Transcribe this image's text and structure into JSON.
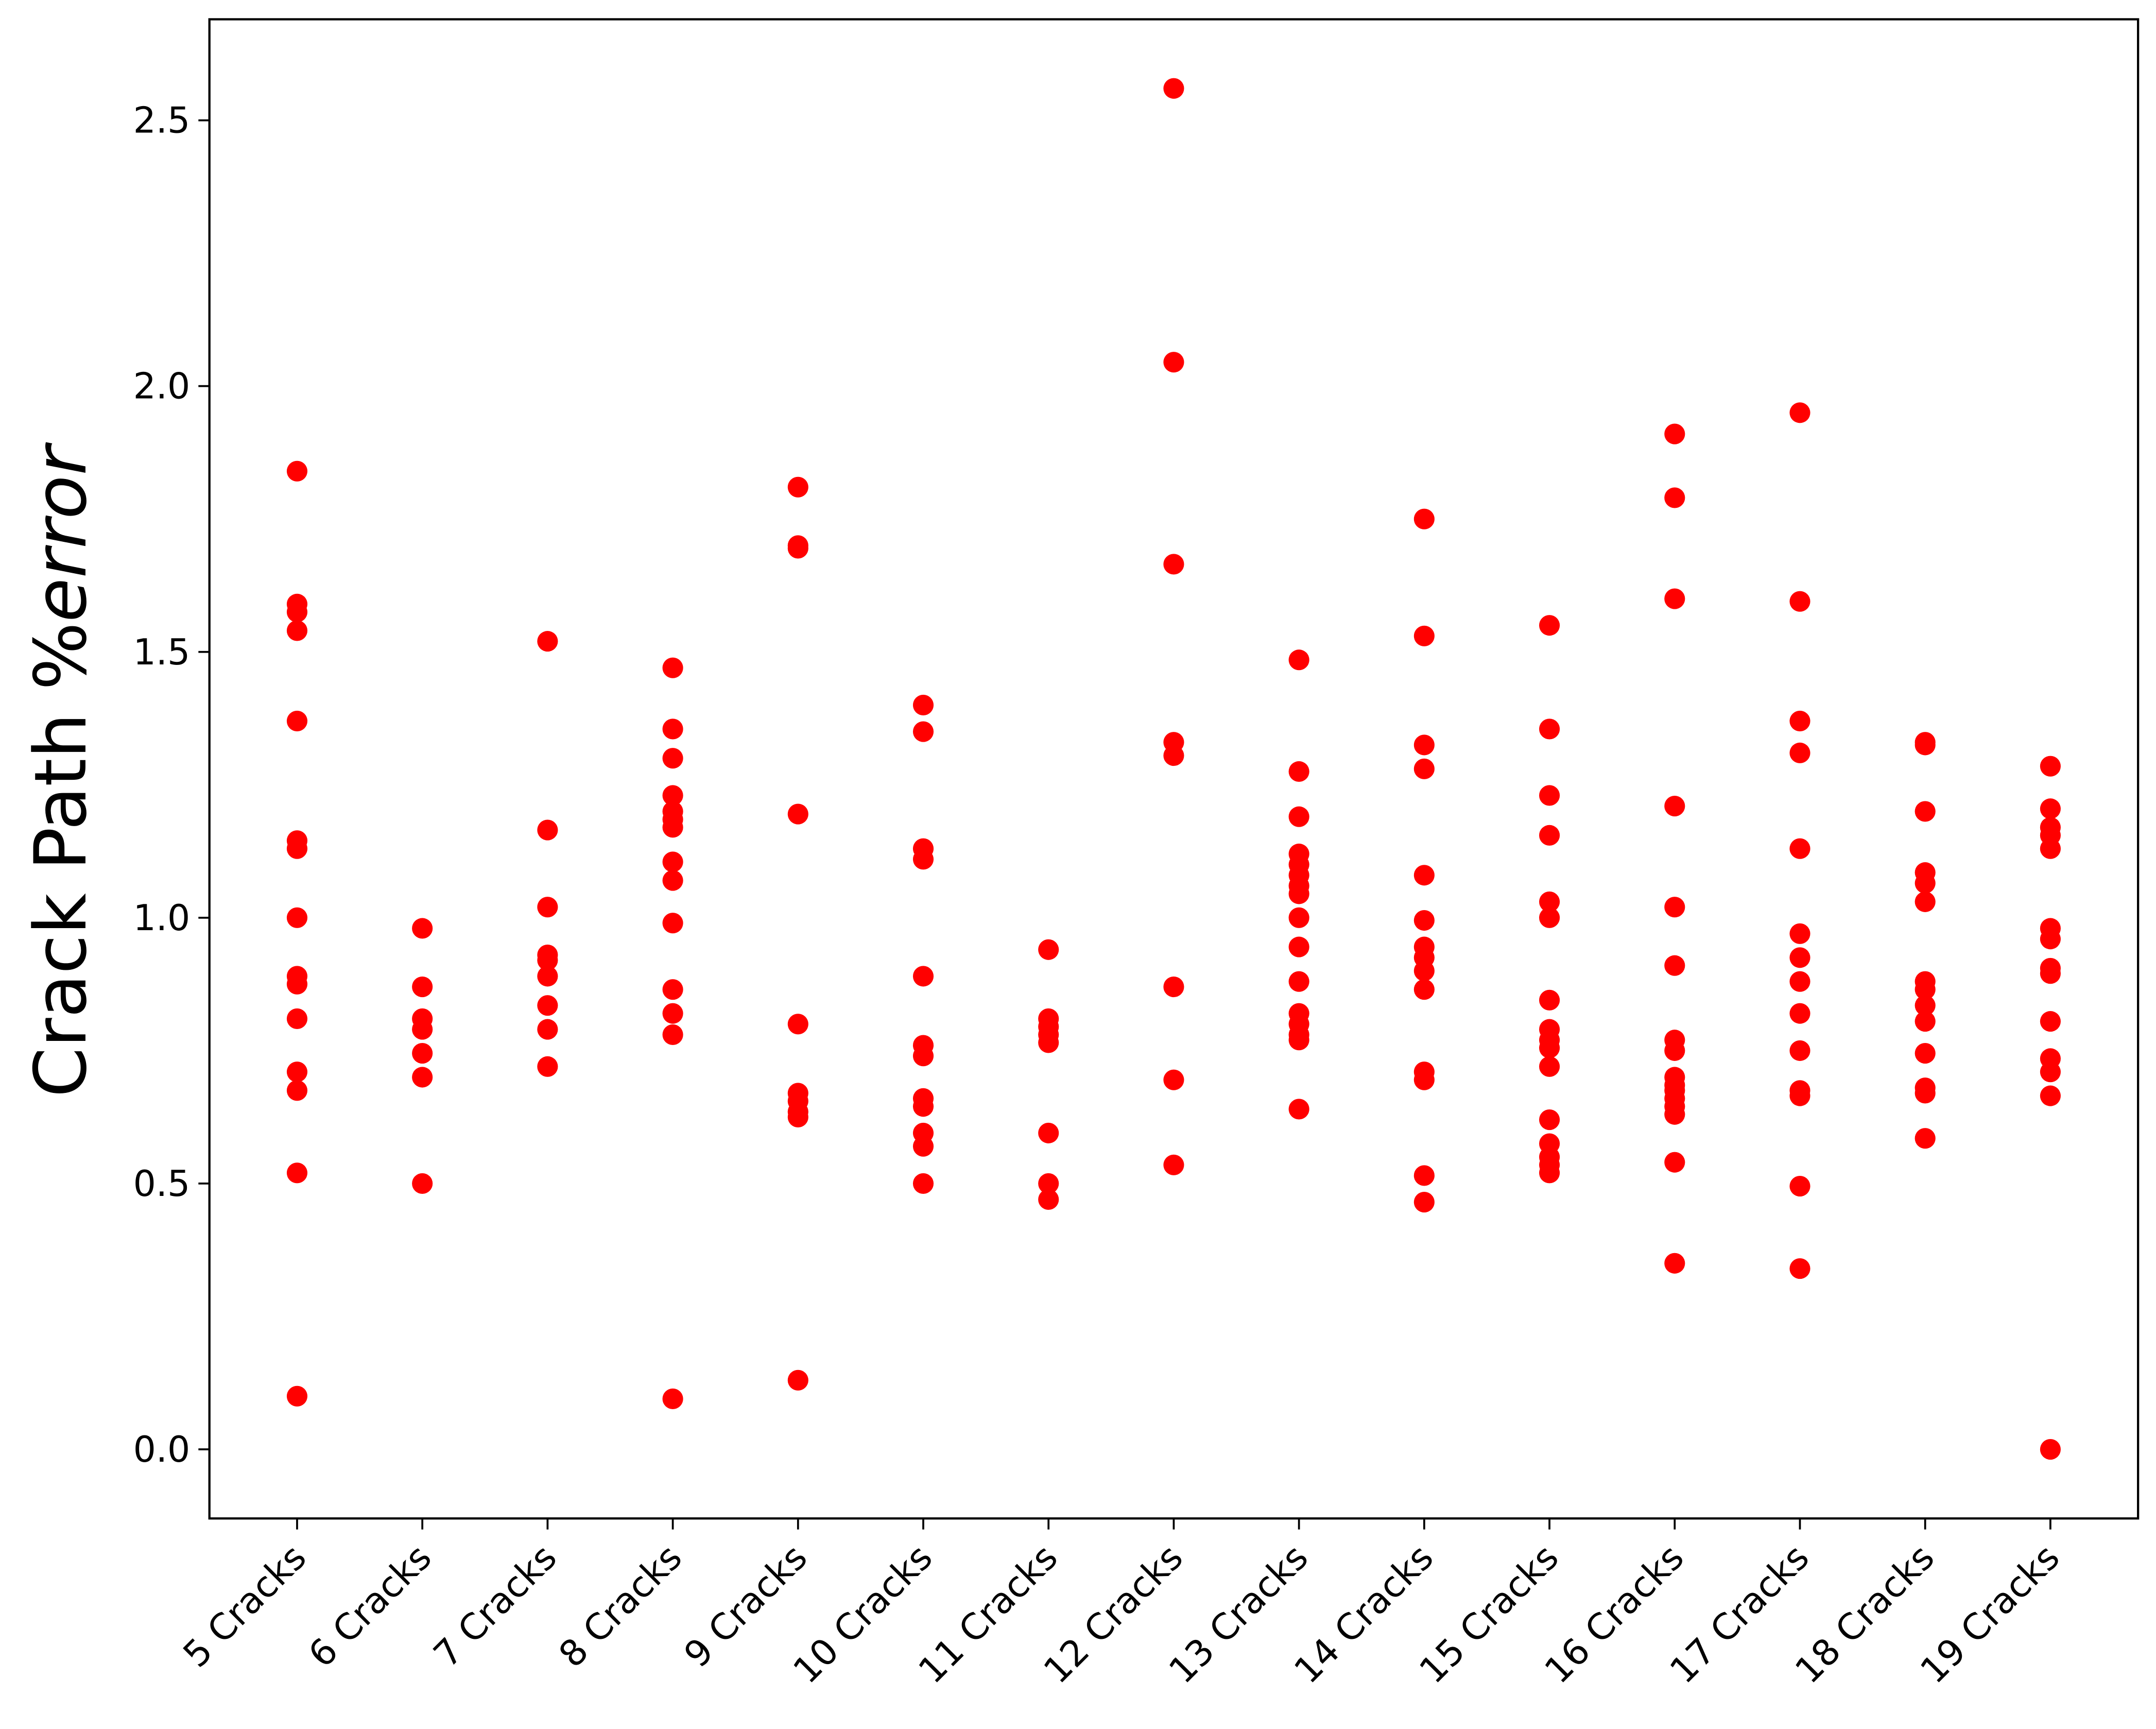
{
  "chart_data": {
    "type": "strip",
    "y_label": [
      "Crack Path %",
      "error"
    ],
    "categories": [
      "5 Cracks",
      "6 Cracks",
      "7 Cracks",
      "8 Cracks",
      "9 Cracks",
      "10 Cracks",
      "11 Cracks",
      "12 Cracks",
      "13 Cracks",
      "14 Cracks",
      "15 Cracks",
      "16 Cracks",
      "17 Cracks",
      "18 Cracks",
      "19 Cracks"
    ],
    "color": "#ff0000",
    "values": [
      [
        1.84,
        1.59,
        1.575,
        1.54,
        1.37,
        1.145,
        1.13,
        1.0,
        0.89,
        0.875,
        0.81,
        0.71,
        0.675,
        0.52,
        0.1
      ],
      [
        0.98,
        0.87,
        0.81,
        0.79,
        0.745,
        0.7,
        0.5
      ],
      [
        1.52,
        1.165,
        1.02,
        0.93,
        0.92,
        0.89,
        0.835,
        0.79,
        0.72
      ],
      [
        1.47,
        1.355,
        1.3,
        1.23,
        1.2,
        1.185,
        1.17,
        1.105,
        1.07,
        0.99,
        0.865,
        0.82,
        0.78,
        0.095
      ],
      [
        1.81,
        1.7,
        1.695,
        1.195,
        0.8,
        0.67,
        0.655,
        0.635,
        0.625,
        0.13
      ],
      [
        1.4,
        1.35,
        1.13,
        1.11,
        0.89,
        0.76,
        0.74,
        0.66,
        0.645,
        0.595,
        0.57,
        0.5
      ],
      [
        0.94,
        0.81,
        0.795,
        0.78,
        0.765,
        0.595,
        0.5,
        0.47
      ],
      [
        2.56,
        2.045,
        1.665,
        1.33,
        1.305,
        0.87,
        0.695,
        0.535
      ],
      [
        1.485,
        1.275,
        1.19,
        1.12,
        1.1,
        1.08,
        1.06,
        1.045,
        1.0,
        0.945,
        0.88,
        0.82,
        0.8,
        0.78,
        0.77,
        0.64
      ],
      [
        1.75,
        1.53,
        1.325,
        1.28,
        1.08,
        0.995,
        0.945,
        0.925,
        0.9,
        0.865,
        0.71,
        0.695,
        0.515,
        0.465
      ],
      [
        1.55,
        1.355,
        1.23,
        1.155,
        1.03,
        1.0,
        0.845,
        0.79,
        0.77,
        0.755,
        0.72,
        0.62,
        0.575,
        0.55,
        0.535,
        0.52
      ],
      [
        1.91,
        1.79,
        1.6,
        1.21,
        1.02,
        0.91,
        0.77,
        0.75,
        0.7,
        0.685,
        0.675,
        0.66,
        0.645,
        0.63,
        0.54,
        0.35
      ],
      [
        1.95,
        1.595,
        1.37,
        1.31,
        1.13,
        0.97,
        0.925,
        0.88,
        0.82,
        0.75,
        0.675,
        0.665,
        0.495,
        0.34
      ],
      [
        1.33,
        1.325,
        1.2,
        1.085,
        1.065,
        1.03,
        0.88,
        0.865,
        0.835,
        0.805,
        0.745,
        0.68,
        0.67,
        0.585
      ],
      [
        1.285,
        1.205,
        1.17,
        1.155,
        1.13,
        0.98,
        0.96,
        0.905,
        0.895,
        0.805,
        0.735,
        0.71,
        0.665,
        0.0
      ]
    ],
    "ylim": [
      -0.13,
      2.69
    ],
    "yticks": [
      {
        "value": 0,
        "label": "0.0"
      },
      0.5,
      {
        "value": 1,
        "label": "1.0"
      },
      1.5,
      {
        "value": 2,
        "label": "2.0"
      },
      2.5
    ],
    "grid": false
  }
}
